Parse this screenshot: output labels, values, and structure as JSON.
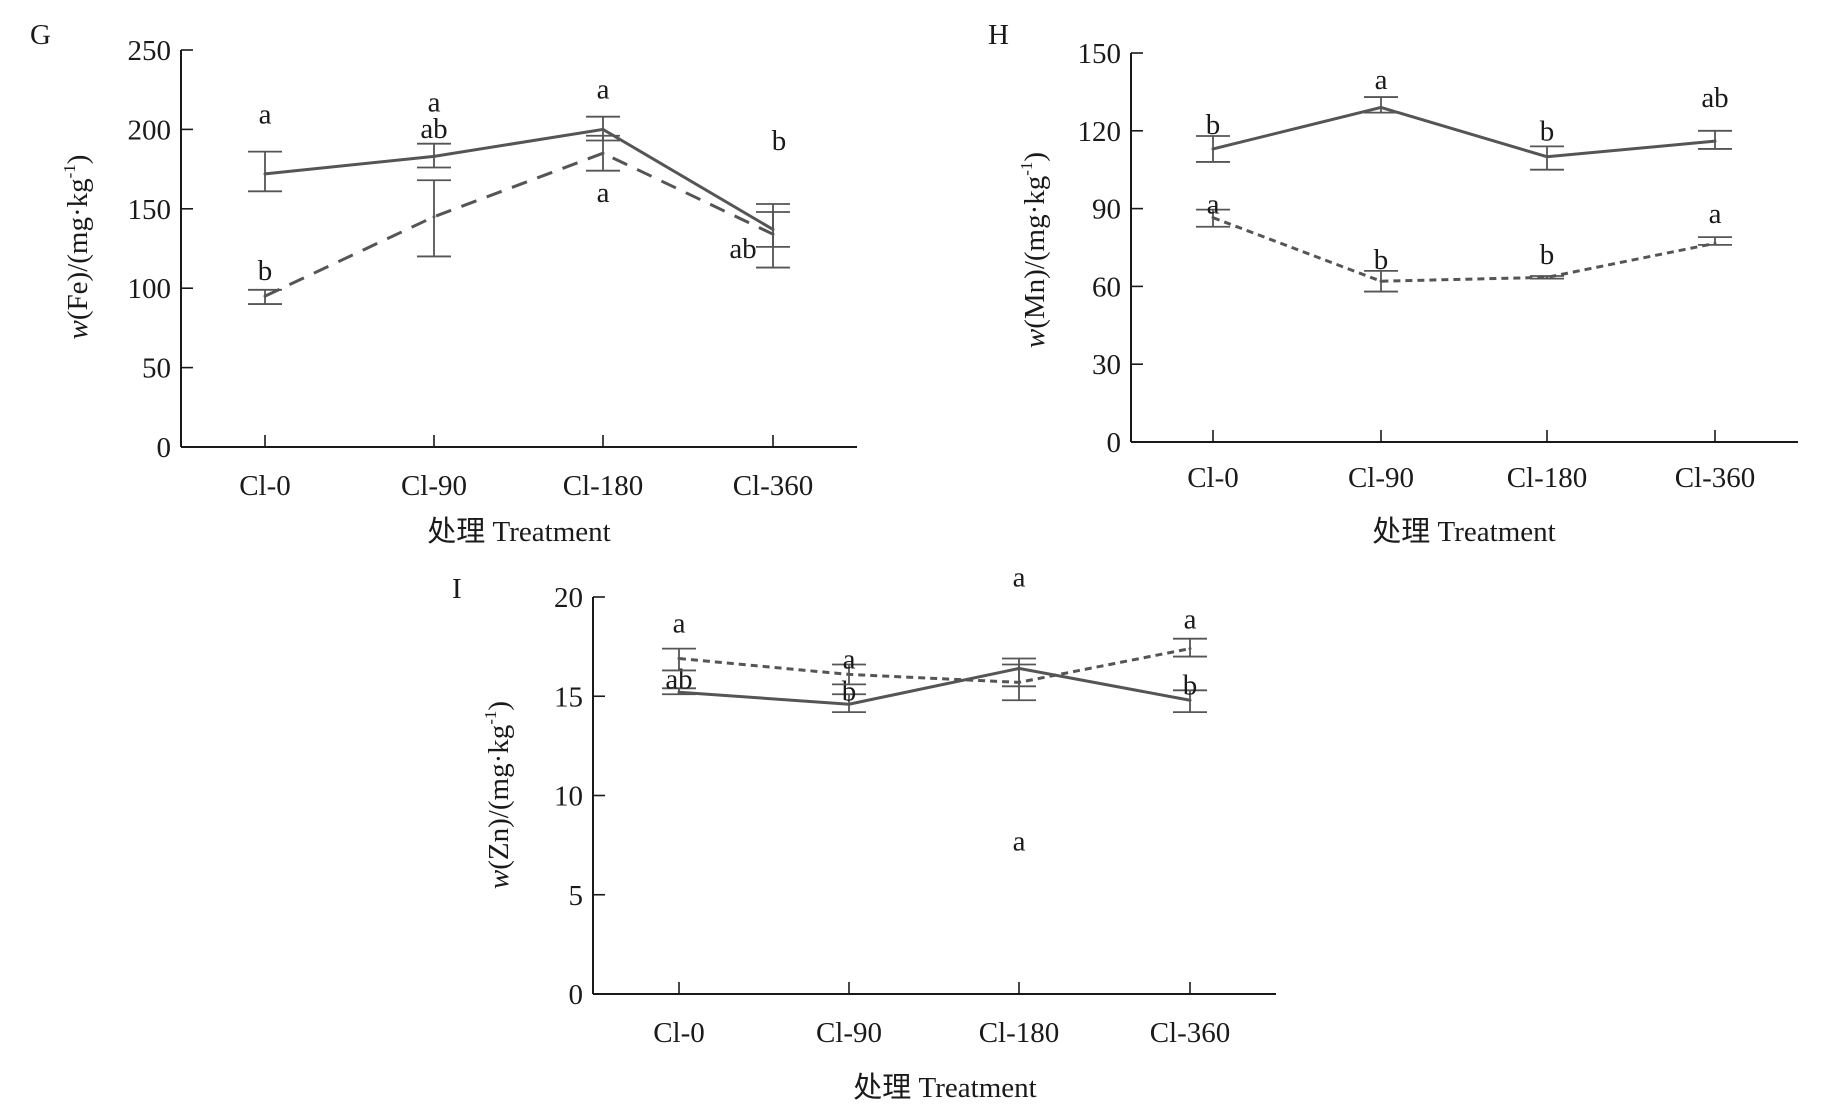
{
  "colors": {
    "axis": "#1a1a1a",
    "series_line": "#555555",
    "text": "#1a1a1a"
  },
  "chart_data": [
    {
      "type": "line",
      "panel": "G",
      "title": "",
      "xlabel": "处理 Treatment",
      "ylabel": "w(Fe)/(mg·kg-1)",
      "ylabel_parts": {
        "var": "w",
        "body": "(Fe)/(mg·kg",
        "sup": "-1",
        "close": ")"
      },
      "categories": [
        "Cl-0",
        "Cl-90",
        "Cl-180",
        "Cl-360"
      ],
      "ylim": [
        0,
        250
      ],
      "yticks": [
        0,
        50,
        100,
        150,
        200,
        250
      ],
      "ytick_labels": [
        "0",
        "50",
        "100",
        "150",
        "200",
        "250"
      ],
      "grid": false,
      "series": [
        {
          "name": "solid",
          "style": "solid",
          "values": [
            172,
            183,
            200,
            137
          ],
          "err_low": [
            161,
            176,
            193,
            126
          ],
          "err_high": [
            186,
            191,
            208,
            153
          ],
          "letters": [
            "a",
            "a",
            "a",
            "b"
          ]
        },
        {
          "name": "dashed",
          "style": "dashed",
          "values": [
            95,
            145,
            185,
            134
          ],
          "err_low": [
            90,
            120,
            174,
            113
          ],
          "err_high": [
            99,
            168,
            196,
            148
          ],
          "letters": [
            "b",
            "ab",
            "a",
            "ab"
          ]
        }
      ]
    },
    {
      "type": "line",
      "panel": "H",
      "title": "",
      "xlabel": "处理 Treatment",
      "ylabel": "w(Mn)/(mg·kg-1)",
      "ylabel_parts": {
        "var": "w",
        "body": "(Mn)/(mg·kg",
        "sup": "-1",
        "close": ")"
      },
      "categories": [
        "Cl-0",
        "Cl-90",
        "Cl-180",
        "Cl-360"
      ],
      "ylim": [
        0,
        150
      ],
      "yticks": [
        0,
        30,
        60,
        90,
        120,
        150
      ],
      "ytick_labels": [
        "0",
        "30",
        "60",
        "90",
        "120",
        "150"
      ],
      "grid": false,
      "series": [
        {
          "name": "solid",
          "style": "solid",
          "values": [
            113,
            129,
            110,
            116
          ],
          "err_low": [
            108,
            127,
            105,
            113
          ],
          "err_high": [
            118,
            133,
            114,
            120
          ],
          "letters": [
            "b",
            "a",
            "b",
            "ab"
          ]
        },
        {
          "name": "dashed",
          "style": "dashed",
          "values": [
            86.5,
            62,
            63.5,
            76.6
          ],
          "err_low": [
            83,
            58,
            63,
            76
          ],
          "err_high": [
            89.6,
            66,
            64,
            79
          ],
          "letters": [
            "a",
            "b",
            "b",
            "a"
          ]
        }
      ]
    },
    {
      "type": "line",
      "panel": "I",
      "title": "",
      "xlabel": "处理 Treatment",
      "ylabel": "w(Zn)/(mg·kg-1)",
      "ylabel_parts": {
        "var": "w",
        "body": "(Zn)/(mg·kg",
        "sup": "-1",
        "close": ")"
      },
      "categories": [
        "Cl-0",
        "Cl-90",
        "Cl-180",
        "Cl-360"
      ],
      "ylim": [
        0,
        20
      ],
      "yticks": [
        0,
        5,
        10,
        15,
        20
      ],
      "ytick_labels": [
        "0",
        "5",
        "10",
        "15",
        "20"
      ],
      "grid": false,
      "series": [
        {
          "name": "solid",
          "style": "solid",
          "values": [
            15.2,
            14.6,
            16.4,
            14.8
          ],
          "err_low": [
            15.1,
            14.2,
            14.8,
            14.2
          ],
          "err_high": [
            15.4,
            15.1,
            16.9,
            15.3
          ],
          "letters": [
            "ab",
            "b",
            "a",
            "b"
          ]
        },
        {
          "name": "dashed",
          "style": "dashed",
          "values": [
            16.9,
            16.1,
            15.7,
            17.4
          ],
          "err_low": [
            16.3,
            15.6,
            15.5,
            17.0
          ],
          "err_high": [
            17.4,
            16.6,
            16.6,
            17.9
          ],
          "letters": [
            "a",
            "a",
            "a",
            "a"
          ]
        }
      ]
    }
  ]
}
